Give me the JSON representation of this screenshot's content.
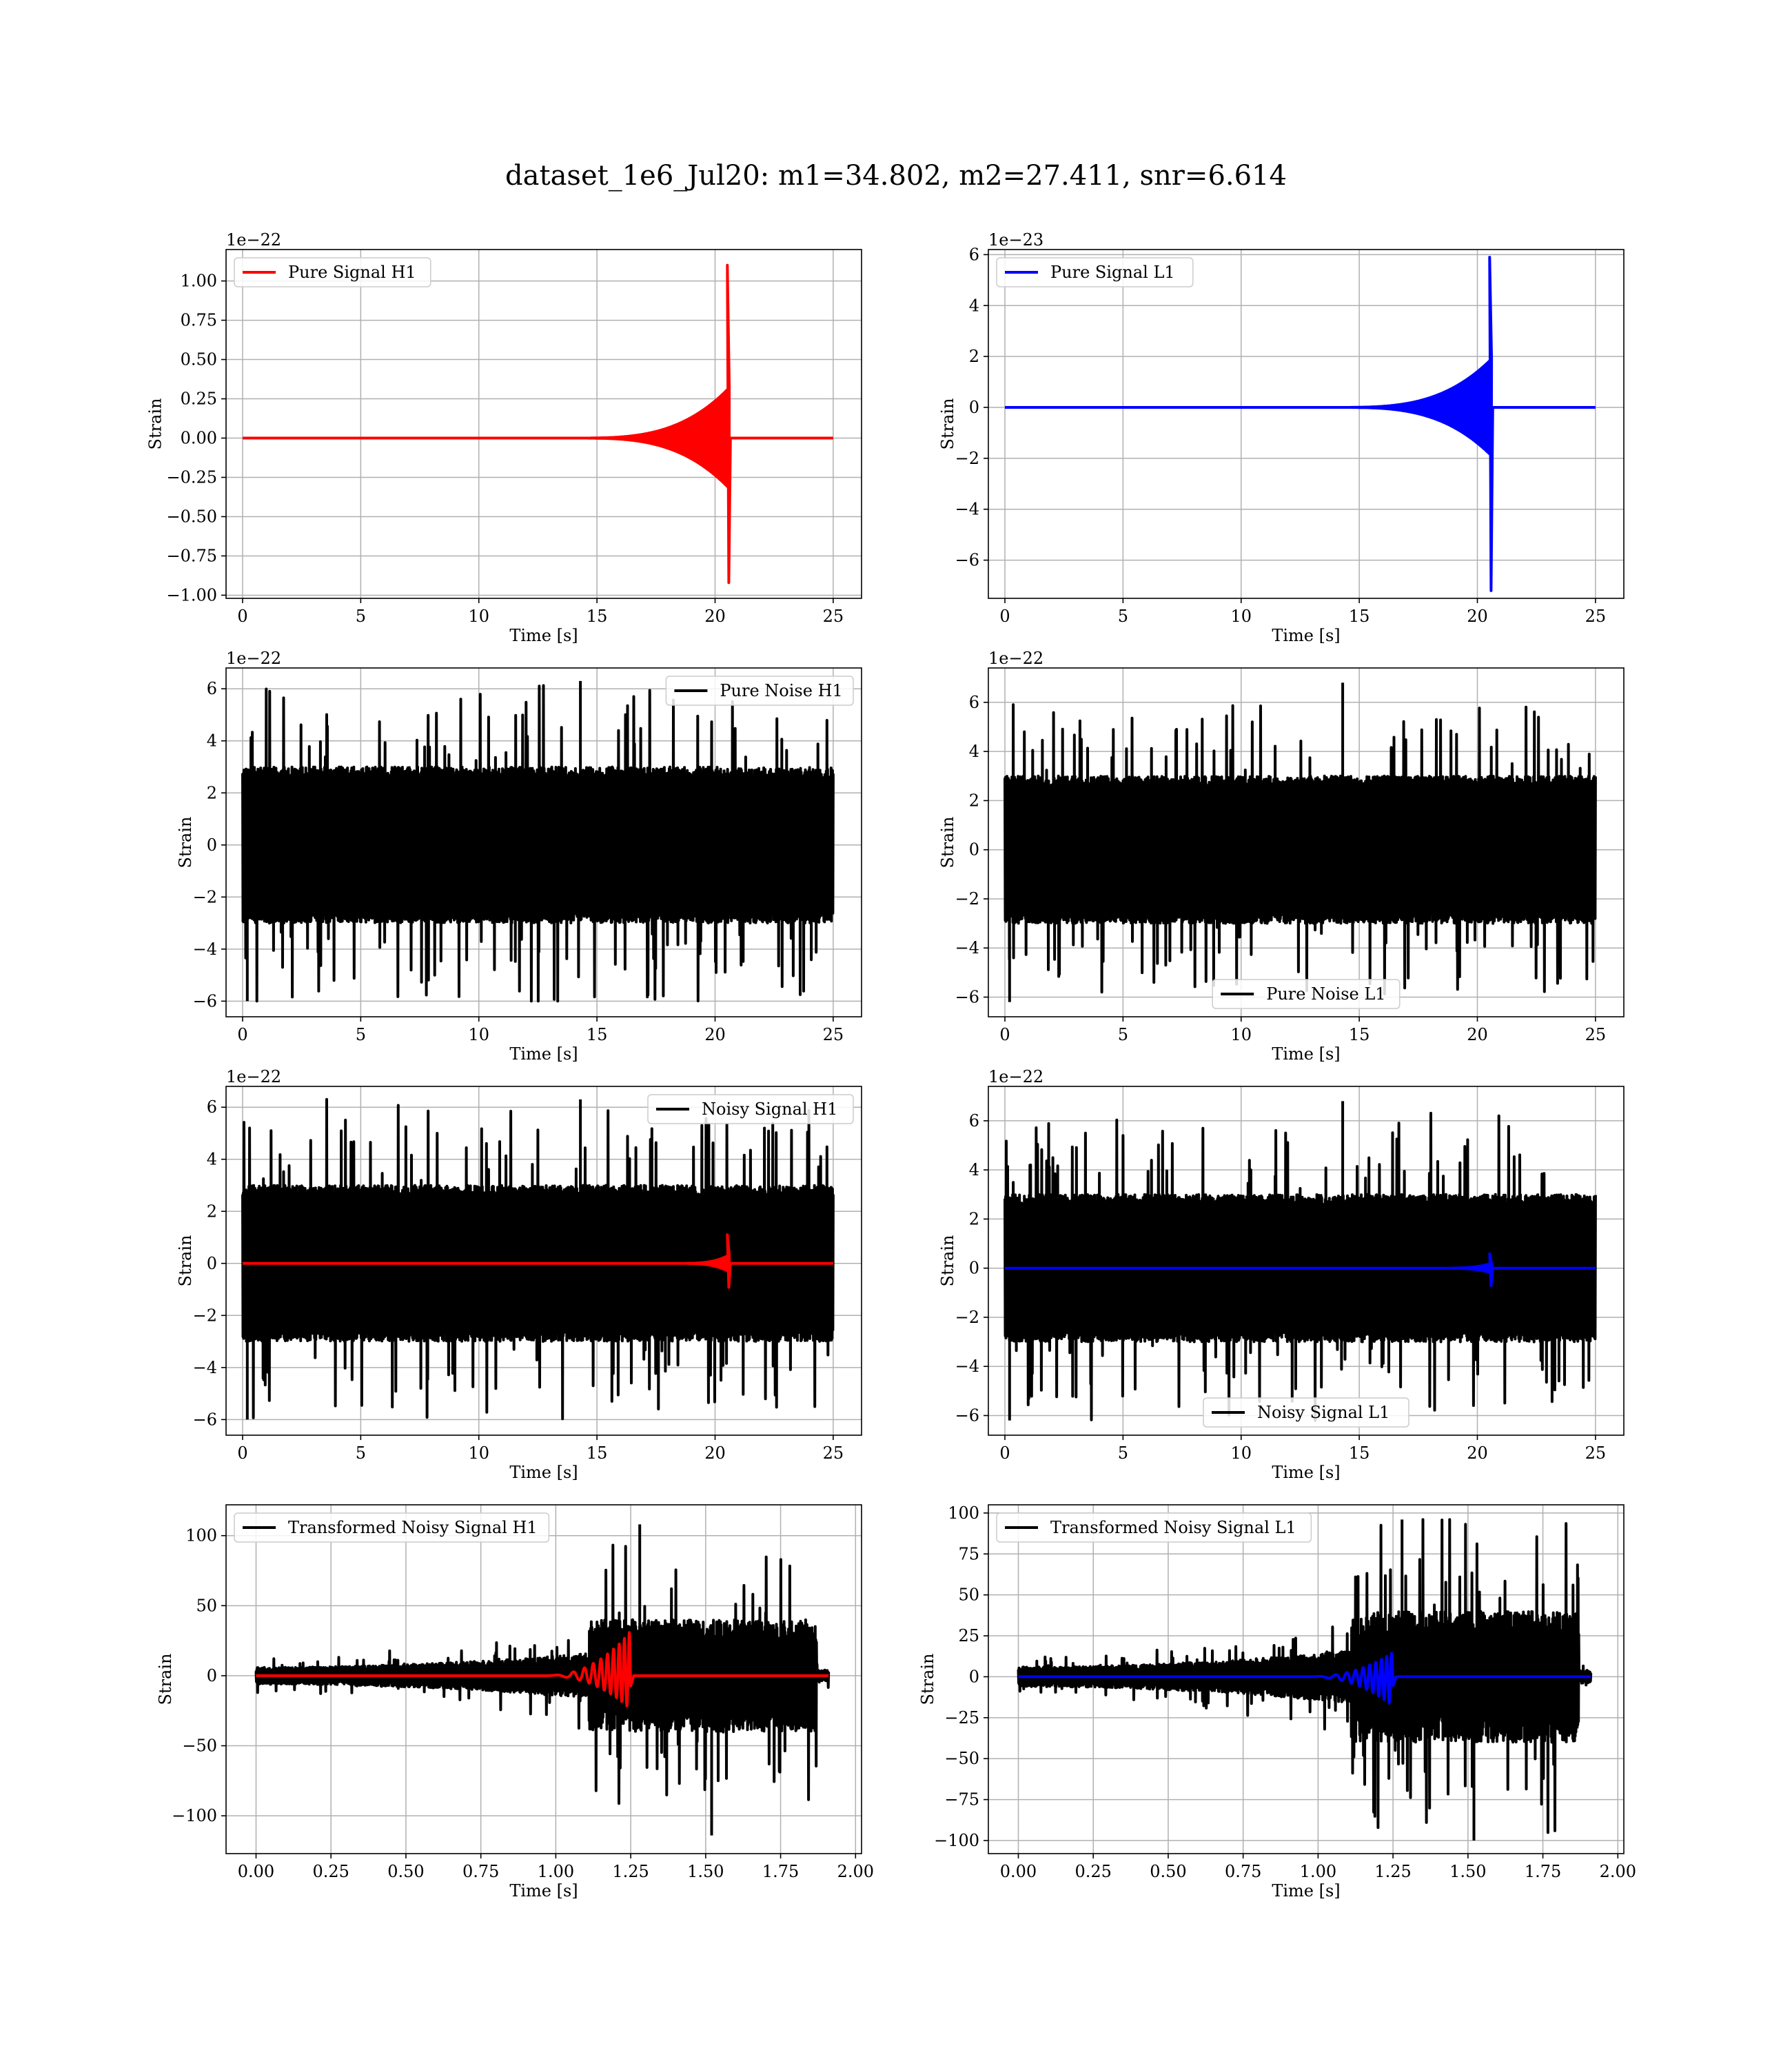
{
  "figure": {
    "suptitle": "dataset_1e6_Jul20: m1=34.802, m2=27.411, snr=6.614"
  },
  "colors": {
    "h1_signal": "#ff0000",
    "l1_signal": "#0000ff",
    "noise": "#000000",
    "grid": "#b0b0b0"
  },
  "chart_data": [
    {
      "id": "pure-signal-h1",
      "type": "line",
      "xlabel": "Time [s]",
      "ylabel": "Strain",
      "offset_text": "1e−22",
      "xlim": [
        -0.7,
        26.2
      ],
      "ylim": [
        -1.02,
        1.2
      ],
      "xticks": [
        0,
        5,
        10,
        15,
        20,
        25
      ],
      "xtick_labels": [
        "0",
        "5",
        "10",
        "15",
        "20",
        "25"
      ],
      "yticks": [
        -1.0,
        -0.75,
        -0.5,
        -0.25,
        0.0,
        0.25,
        0.5,
        0.75,
        1.0
      ],
      "ytick_labels": [
        "−1.00",
        "−0.75",
        "−0.50",
        "−0.25",
        "0.00",
        "0.25",
        "0.50",
        "0.75",
        "1.00"
      ],
      "legend": {
        "position": "upper-left",
        "label": "Pure Signal H1"
      },
      "series": [
        {
          "name": "Pure Signal H1",
          "color": "#ff0000",
          "kind": "chirp",
          "x_start": 0,
          "x_end": 25,
          "merger_t": 20.6,
          "start_t": 14,
          "peak_pos": 1.1,
          "peak_neg": -0.92,
          "base": 0.32
        }
      ],
      "grid": true
    },
    {
      "id": "pure-signal-l1",
      "type": "line",
      "xlabel": "Time [s]",
      "ylabel": "Strain",
      "offset_text": "1e−23",
      "xlim": [
        -0.7,
        26.2
      ],
      "ylim": [
        -7.5,
        6.2
      ],
      "xticks": [
        0,
        5,
        10,
        15,
        20,
        25
      ],
      "xtick_labels": [
        "0",
        "5",
        "10",
        "15",
        "20",
        "25"
      ],
      "yticks": [
        -6,
        -4,
        -2,
        0,
        2,
        4,
        6
      ],
      "ytick_labels": [
        "−6",
        "−4",
        "−2",
        "0",
        "2",
        "4",
        "6"
      ],
      "legend": {
        "position": "upper-left",
        "label": "Pure Signal L1"
      },
      "series": [
        {
          "name": "Pure Signal L1",
          "color": "#0000ff",
          "kind": "chirp",
          "x_start": 0,
          "x_end": 25,
          "merger_t": 20.6,
          "start_t": 14,
          "peak_pos": 5.9,
          "peak_neg": -7.2,
          "base": 1.9
        }
      ],
      "grid": true
    },
    {
      "id": "pure-noise-h1",
      "type": "line",
      "xlabel": "Time [s]",
      "ylabel": "Strain",
      "offset_text": "1e−22",
      "xlim": [
        -0.7,
        26.2
      ],
      "ylim": [
        -6.6,
        6.8
      ],
      "xticks": [
        0,
        5,
        10,
        15,
        20,
        25
      ],
      "xtick_labels": [
        "0",
        "5",
        "10",
        "15",
        "20",
        "25"
      ],
      "yticks": [
        -6,
        -4,
        -2,
        0,
        2,
        4,
        6
      ],
      "ytick_labels": [
        "−6",
        "−4",
        "−2",
        "0",
        "2",
        "4",
        "6"
      ],
      "legend": {
        "position": "upper-right",
        "label": "Pure Noise H1"
      },
      "series": [
        {
          "name": "Pure Noise H1",
          "color": "#000000",
          "kind": "noise",
          "x_start": 0,
          "x_end": 25,
          "amp_max": 6.3,
          "amp_min": -6.0,
          "core": 3.0
        }
      ],
      "grid": true
    },
    {
      "id": "pure-noise-l1",
      "type": "line",
      "xlabel": "Time [s]",
      "ylabel": "Strain",
      "offset_text": "1e−22",
      "xlim": [
        -0.7,
        26.2
      ],
      "ylim": [
        -6.8,
        7.4
      ],
      "xticks": [
        0,
        5,
        10,
        15,
        20,
        25
      ],
      "xtick_labels": [
        "0",
        "5",
        "10",
        "15",
        "20",
        "25"
      ],
      "yticks": [
        -6,
        -4,
        -2,
        0,
        2,
        4,
        6
      ],
      "ytick_labels": [
        "−6",
        "−4",
        "−2",
        "0",
        "2",
        "4",
        "6"
      ],
      "legend": {
        "position": "lower-center",
        "label": "Pure Noise L1"
      },
      "series": [
        {
          "name": "Pure Noise L1",
          "color": "#000000",
          "kind": "noise",
          "x_start": 0,
          "x_end": 25,
          "amp_max": 6.8,
          "amp_min": -6.2,
          "core": 3.0
        }
      ],
      "grid": true
    },
    {
      "id": "noisy-signal-h1",
      "type": "line",
      "xlabel": "Time [s]",
      "ylabel": "Strain",
      "offset_text": "1e−22",
      "xlim": [
        -0.7,
        26.2
      ],
      "ylim": [
        -6.6,
        6.8
      ],
      "xticks": [
        0,
        5,
        10,
        15,
        20,
        25
      ],
      "xtick_labels": [
        "0",
        "5",
        "10",
        "15",
        "20",
        "25"
      ],
      "yticks": [
        -6,
        -4,
        -2,
        0,
        2,
        4,
        6
      ],
      "ytick_labels": [
        "−6",
        "−4",
        "−2",
        "0",
        "2",
        "4",
        "6"
      ],
      "legend": {
        "position": "upper-right",
        "label": "Noisy Signal H1"
      },
      "series": [
        {
          "name": "Noisy Signal H1",
          "color": "#000000",
          "kind": "noise",
          "x_start": 0,
          "x_end": 25,
          "amp_max": 6.3,
          "amp_min": -6.0,
          "core": 3.0
        },
        {
          "name": "",
          "color": "#ff0000",
          "kind": "chirp",
          "x_start": 0,
          "x_end": 25,
          "merger_t": 20.6,
          "start_t": 18.5,
          "peak_pos": 1.1,
          "peak_neg": -0.92,
          "base": 0.32
        }
      ],
      "grid": true
    },
    {
      "id": "noisy-signal-l1",
      "type": "line",
      "xlabel": "Time [s]",
      "ylabel": "Strain",
      "offset_text": "1e−22",
      "xlim": [
        -0.7,
        26.2
      ],
      "ylim": [
        -6.8,
        7.4
      ],
      "xticks": [
        0,
        5,
        10,
        15,
        20,
        25
      ],
      "xtick_labels": [
        "0",
        "5",
        "10",
        "15",
        "20",
        "25"
      ],
      "yticks": [
        -6,
        -4,
        -2,
        0,
        2,
        4,
        6
      ],
      "ytick_labels": [
        "−6",
        "−4",
        "−2",
        "0",
        "2",
        "4",
        "6"
      ],
      "legend": {
        "position": "lower-center",
        "label": "Noisy Signal L1"
      },
      "series": [
        {
          "name": "Noisy Signal L1",
          "color": "#000000",
          "kind": "noise",
          "x_start": 0,
          "x_end": 25,
          "amp_max": 6.8,
          "amp_min": -6.2,
          "core": 3.0
        },
        {
          "name": "",
          "color": "#0000ff",
          "kind": "chirp",
          "x_start": 0,
          "x_end": 25,
          "merger_t": 20.6,
          "start_t": 18.5,
          "peak_pos": 0.59,
          "peak_neg": -0.72,
          "base": 0.19
        }
      ],
      "grid": true
    },
    {
      "id": "transformed-noisy-signal-h1",
      "type": "line",
      "xlabel": "Time [s]",
      "ylabel": "Strain",
      "offset_text": "",
      "xlim": [
        -0.1,
        2.02
      ],
      "ylim": [
        -127,
        122
      ],
      "xticks": [
        0.0,
        0.25,
        0.5,
        0.75,
        1.0,
        1.25,
        1.5,
        1.75,
        2.0
      ],
      "xtick_labels": [
        "0.00",
        "0.25",
        "0.50",
        "0.75",
        "1.00",
        "1.25",
        "1.50",
        "1.75",
        "2.00"
      ],
      "yticks": [
        -100,
        -50,
        0,
        50,
        100
      ],
      "ytick_labels": [
        "−100",
        "−50",
        "0",
        "50",
        "100"
      ],
      "legend": {
        "position": "upper-left",
        "label": "Transformed Noisy Signal H1"
      },
      "series": [
        {
          "name": "Transformed Noisy Signal H1",
          "color": "#000000",
          "kind": "transformed-noise",
          "x_start": 0,
          "x_end": 1.91,
          "cutoff": 1.87,
          "jump_t": 1.11,
          "amp_max": 108,
          "amp_min": -114
        },
        {
          "name": "",
          "color": "#ff0000",
          "kind": "transformed-chirp",
          "x_start": 0,
          "x_end": 1.91,
          "merger_t": 1.25,
          "start_t": 0.95,
          "peak_pos": 32,
          "peak_neg": -24
        }
      ],
      "grid": true
    },
    {
      "id": "transformed-noisy-signal-l1",
      "type": "line",
      "xlabel": "Time [s]",
      "ylabel": "Strain",
      "offset_text": "",
      "xlim": [
        -0.1,
        2.02
      ],
      "ylim": [
        -108,
        105
      ],
      "xticks": [
        0.0,
        0.25,
        0.5,
        0.75,
        1.0,
        1.25,
        1.5,
        1.75,
        2.0
      ],
      "xtick_labels": [
        "0.00",
        "0.25",
        "0.50",
        "0.75",
        "1.00",
        "1.25",
        "1.50",
        "1.75",
        "2.00"
      ],
      "yticks": [
        -100,
        -75,
        -50,
        -25,
        0,
        25,
        50,
        75,
        100
      ],
      "ytick_labels": [
        "−100",
        "−75",
        "−50",
        "−25",
        "0",
        "25",
        "50",
        "75",
        "100"
      ],
      "legend": {
        "position": "upper-left",
        "label": "Transformed Noisy Signal L1"
      },
      "series": [
        {
          "name": "Transformed Noisy Signal L1",
          "color": "#000000",
          "kind": "transformed-noise",
          "x_start": 0,
          "x_end": 1.91,
          "cutoff": 1.87,
          "jump_t": 1.11,
          "amp_max": 96,
          "amp_min": -100
        },
        {
          "name": "",
          "color": "#0000ff",
          "kind": "transformed-chirp",
          "x_start": 0,
          "x_end": 1.91,
          "merger_t": 1.25,
          "start_t": 0.95,
          "peak_pos": 15,
          "peak_neg": -18
        }
      ],
      "grid": true
    }
  ]
}
